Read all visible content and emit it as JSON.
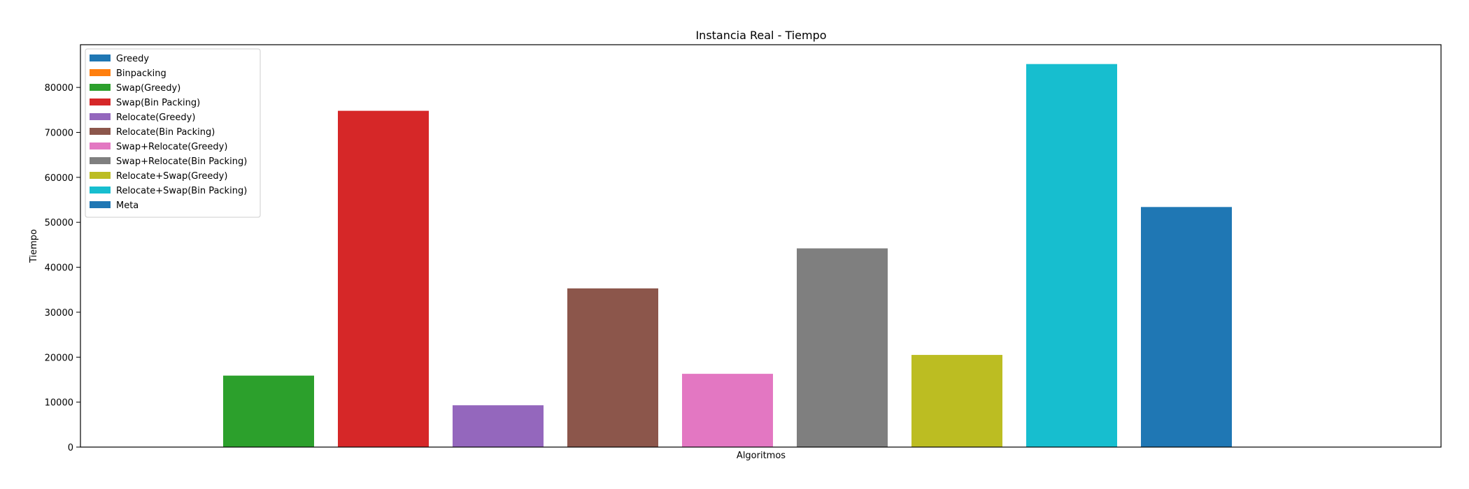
{
  "chart_data": {
    "type": "bar",
    "title": "Instancia Real - Tiempo",
    "xlabel": "Algoritmos",
    "ylabel": "Tiempo",
    "ylim": [
      0,
      89500
    ],
    "yticks": [
      0,
      10000,
      20000,
      30000,
      40000,
      50000,
      60000,
      70000,
      80000
    ],
    "grid": false,
    "legend_position": "upper-left",
    "series": [
      {
        "name": "Greedy",
        "value": 0,
        "color": "#1f77b4"
      },
      {
        "name": "Binpacking",
        "value": 0,
        "color": "#ff7f0e"
      },
      {
        "name": "Swap(Greedy)",
        "value": 15900,
        "color": "#2ca02c"
      },
      {
        "name": "Swap(Bin Packing)",
        "value": 74800,
        "color": "#d62728"
      },
      {
        "name": "Relocate(Greedy)",
        "value": 9300,
        "color": "#9467bd"
      },
      {
        "name": "Relocate(Bin Packing)",
        "value": 35300,
        "color": "#8c564b"
      },
      {
        "name": "Swap+Relocate(Greedy)",
        "value": 16300,
        "color": "#e377c2"
      },
      {
        "name": "Swap+Relocate(Bin Packing)",
        "value": 44200,
        "color": "#7f7f7f"
      },
      {
        "name": "Relocate+Swap(Greedy)",
        "value": 20500,
        "color": "#bcbd22"
      },
      {
        "name": "Relocate+Swap(Bin Packing)",
        "value": 85200,
        "color": "#17becf"
      },
      {
        "name": "Meta",
        "value": 53400,
        "color": "#1f77b4"
      }
    ]
  }
}
